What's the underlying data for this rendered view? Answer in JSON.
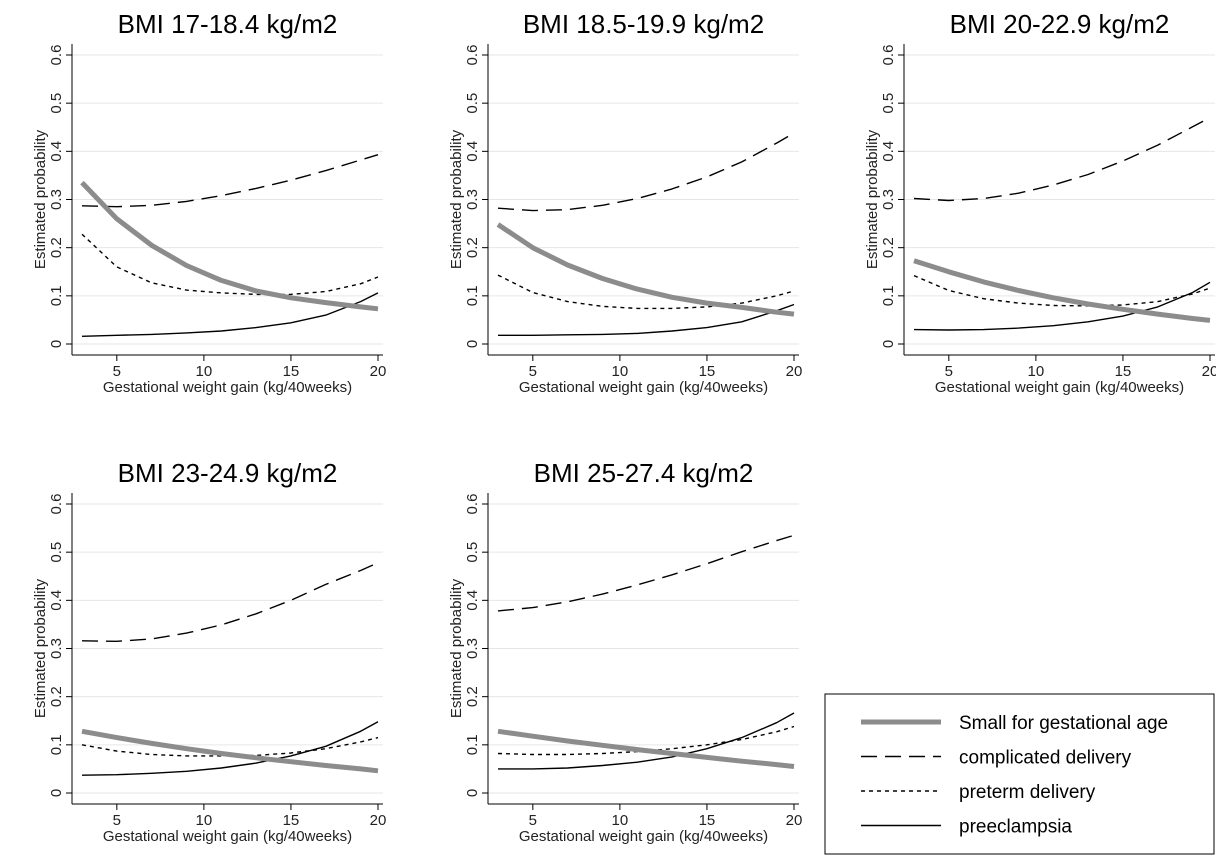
{
  "chart_data": {
    "type": "line",
    "xlabel": "Gestational weight gain (kg/40weeks)",
    "ylabel": "Estimated probability",
    "xlim": [
      3,
      20
    ],
    "ylim": [
      0,
      0.6
    ],
    "x_ticks": [
      5,
      10,
      15,
      20
    ],
    "y_ticks": [
      0,
      0.1,
      0.2,
      0.3,
      0.4,
      0.5,
      0.6
    ],
    "grid": "horizontal",
    "legend": {
      "placement": "bottom-right",
      "entries": [
        {
          "series": "sga",
          "label": "Small for gestational age"
        },
        {
          "series": "complicated",
          "label": "complicated delivery"
        },
        {
          "series": "preterm",
          "label": "preterm delivery"
        },
        {
          "series": "preeclampsia",
          "label": "preeclampsia"
        }
      ]
    },
    "series_styles": {
      "sga": {
        "color": "#8c8c8c",
        "width": 5,
        "dash": ""
      },
      "complicated": {
        "color": "#000000",
        "width": 1.4,
        "dash": "16,8"
      },
      "preterm": {
        "color": "#000000",
        "width": 1.4,
        "dash": "4,4"
      },
      "preeclampsia": {
        "color": "#000000",
        "width": 1.4,
        "dash": ""
      }
    },
    "x": [
      3,
      5,
      7,
      9,
      11,
      13,
      15,
      17,
      19,
      20
    ],
    "panels": [
      {
        "title": "BMI 17-18.4 kg/m2",
        "series": {
          "sga": [
            0.335,
            0.26,
            0.205,
            0.163,
            0.132,
            0.11,
            0.096,
            0.086,
            0.077,
            0.073
          ],
          "complicated": [
            0.287,
            0.285,
            0.288,
            0.296,
            0.308,
            0.323,
            0.34,
            0.36,
            0.382,
            0.393
          ],
          "preterm": [
            0.228,
            0.16,
            0.127,
            0.112,
            0.106,
            0.103,
            0.103,
            0.109,
            0.125,
            0.139
          ],
          "preeclampsia": [
            0.016,
            0.018,
            0.02,
            0.023,
            0.027,
            0.034,
            0.044,
            0.06,
            0.088,
            0.106
          ]
        }
      },
      {
        "title": "BMI 18.5-19.9 kg/m2",
        "series": {
          "sga": [
            0.248,
            0.2,
            0.164,
            0.136,
            0.114,
            0.097,
            0.085,
            0.076,
            0.066,
            0.062
          ],
          "complicated": [
            0.282,
            0.277,
            0.279,
            0.288,
            0.302,
            0.322,
            0.347,
            0.378,
            0.417,
            0.438
          ],
          "preterm": [
            0.143,
            0.107,
            0.088,
            0.078,
            0.074,
            0.074,
            0.077,
            0.085,
            0.1,
            0.11
          ],
          "preeclampsia": [
            0.018,
            0.018,
            0.019,
            0.02,
            0.022,
            0.027,
            0.034,
            0.046,
            0.069,
            0.082
          ]
        }
      },
      {
        "title": "BMI 20-22.9 kg/m2",
        "series": {
          "sga": [
            0.173,
            0.15,
            0.129,
            0.111,
            0.096,
            0.083,
            0.072,
            0.062,
            0.053,
            0.049
          ],
          "complicated": [
            0.302,
            0.298,
            0.302,
            0.313,
            0.33,
            0.352,
            0.38,
            0.413,
            0.451,
            0.47
          ],
          "preterm": [
            0.142,
            0.111,
            0.094,
            0.085,
            0.08,
            0.079,
            0.081,
            0.088,
            0.104,
            0.116
          ],
          "preeclampsia": [
            0.03,
            0.029,
            0.03,
            0.033,
            0.038,
            0.046,
            0.058,
            0.077,
            0.107,
            0.128
          ]
        }
      },
      {
        "title": "BMI 23-24.9 kg/m2",
        "series": {
          "sga": [
            0.128,
            0.115,
            0.103,
            0.092,
            0.082,
            0.073,
            0.065,
            0.057,
            0.05,
            0.046
          ],
          "complicated": [
            0.316,
            0.315,
            0.32,
            0.332,
            0.349,
            0.372,
            0.4,
            0.433,
            0.462,
            0.478
          ],
          "preterm": [
            0.1,
            0.087,
            0.08,
            0.077,
            0.077,
            0.078,
            0.083,
            0.092,
            0.106,
            0.115
          ],
          "preeclampsia": [
            0.037,
            0.038,
            0.041,
            0.045,
            0.052,
            0.062,
            0.077,
            0.097,
            0.128,
            0.148
          ]
        }
      },
      {
        "title": "BMI 25-27.4 kg/m2",
        "series": {
          "sga": [
            0.128,
            0.118,
            0.108,
            0.099,
            0.09,
            0.082,
            0.074,
            0.066,
            0.059,
            0.055
          ],
          "complicated": [
            0.378,
            0.385,
            0.397,
            0.413,
            0.432,
            0.453,
            0.476,
            0.501,
            0.524,
            0.535
          ],
          "preterm": [
            0.082,
            0.08,
            0.08,
            0.082,
            0.086,
            0.092,
            0.1,
            0.111,
            0.127,
            0.138
          ],
          "preeclampsia": [
            0.05,
            0.05,
            0.052,
            0.057,
            0.064,
            0.075,
            0.092,
            0.115,
            0.146,
            0.166
          ]
        }
      }
    ]
  }
}
